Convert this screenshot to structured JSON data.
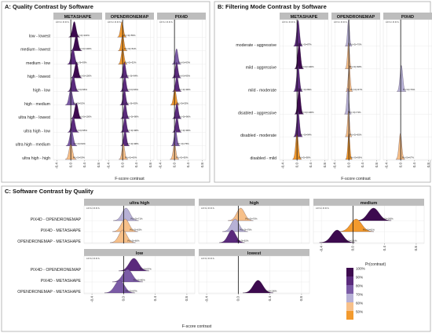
{
  "colors": {
    "p100": "#3d0a4f",
    "p90": "#5a2a7c",
    "p80": "#7b5ba6",
    "p70": "#b7b1d6",
    "p60": "#f7c089",
    "p50": "#f39a2d",
    "panel_bg": "#ffffff",
    "strip_bg": "#bdbdbd",
    "grid": "#e3e3e3"
  },
  "legend": {
    "title": "Pr(contrast)",
    "labels": [
      "100%",
      "90%",
      "80%",
      "70%",
      "60%",
      "50%"
    ]
  },
  "chart_data": [
    {
      "id": "A",
      "type": "ridgeline",
      "title": "A: Quality Contrast by Software",
      "facets": [
        "METASHAPE",
        "OPENDRONEMAP",
        "PIX4D"
      ],
      "rope_label": "LR.S.I.R.R.S.",
      "categories": [
        "low - lowest",
        "medium - lowest",
        "medium - low",
        "high - lowest",
        "high - low",
        "high - medium",
        "ultra high - lowest",
        "ultra high - low",
        "ultra high - medium",
        "ultra high - high"
      ],
      "xlabel": "F-score contrast",
      "xlim": [
        -0.5,
        0.9
      ],
      "xticks": [
        -0.4,
        0.0,
        0.4,
        0.8
      ],
      "xtick_labels": [
        "-0.4",
        "0.0",
        "0.4",
        "0.8"
      ],
      "series": [
        {
          "name": "METASHAPE",
          "rows": [
            {
              "category": "low - lowest",
              "mean": 0.1,
              "sd": 0.05,
              "prob": "Pr(>0)=100%",
              "level": 100
            },
            {
              "category": "medium - lowest",
              "mean": 0.16,
              "sd": 0.05,
              "prob": "Pr(>0)=100%",
              "level": 100
            },
            {
              "category": "medium - low",
              "mean": 0.06,
              "sd": 0.05,
              "prob": "Pr(>0)=93%",
              "level": 90
            },
            {
              "category": "high - lowest",
              "mean": 0.16,
              "sd": 0.05,
              "prob": "Pr(>0)=100%",
              "level": 100
            },
            {
              "category": "high - low",
              "mean": 0.07,
              "sd": 0.05,
              "prob": "Pr(>0)=96%",
              "level": 90
            },
            {
              "category": "high - medium",
              "mean": 0.0,
              "sd": 0.05,
              "prob": "Pr(>0)=52%",
              "level": 80
            },
            {
              "category": "ultra high - lowest",
              "mean": 0.16,
              "sd": 0.05,
              "prob": "Pr(>0)=100%",
              "level": 100
            },
            {
              "category": "ultra high - low",
              "mean": 0.07,
              "sd": 0.05,
              "prob": "Pr(>0)=95%",
              "level": 90
            },
            {
              "category": "ultra high - medium",
              "mean": 0.02,
              "sd": 0.05,
              "prob": "Pr(>0)=60%",
              "level": 80
            },
            {
              "category": "ultra high - high",
              "mean": 0.0,
              "sd": 0.05,
              "prob": "Pr(>0)=50%",
              "level": 60
            }
          ]
        },
        {
          "name": "OPENDRONEMAP",
          "rows": [
            {
              "category": "low - lowest",
              "mean": -0.02,
              "sd": 0.04,
              "prob": "Pr(<0)=55%",
              "level": 50
            },
            {
              "category": "medium - lowest",
              "mean": 0.0,
              "sd": 0.04,
              "prob": "Pr(<0)=54%",
              "level": 50
            },
            {
              "category": "medium - low",
              "mean": 0.0,
              "sd": 0.04,
              "prob": "Pr(<0)=52%",
              "level": 50
            },
            {
              "category": "high - lowest",
              "mean": 0.05,
              "sd": 0.04,
              "prob": "Pr(>0)=94%",
              "level": 90
            },
            {
              "category": "high - low",
              "mean": 0.06,
              "sd": 0.04,
              "prob": "Pr(>0)=96%",
              "level": 90
            },
            {
              "category": "high - medium",
              "mean": 0.05,
              "sd": 0.04,
              "prob": "Pr(>0)=92%",
              "level": 90
            },
            {
              "category": "ultra high - lowest",
              "mean": 0.07,
              "sd": 0.04,
              "prob": "Pr(>0)=98%",
              "level": 90
            },
            {
              "category": "ultra high - low",
              "mean": 0.07,
              "sd": 0.04,
              "prob": "Pr(>0)=98%",
              "level": 90
            },
            {
              "category": "ultra high - medium",
              "mean": 0.07,
              "sd": 0.04,
              "prob": "Pr(>0)=98%",
              "level": 90
            },
            {
              "category": "ultra high - high",
              "mean": 0.02,
              "sd": 0.04,
              "prob": "Pr(>0)=60%",
              "level": 60
            }
          ]
        },
        {
          "name": "PIX4D",
          "rows": [
            {
              "category": "low - lowest",
              "mean": null,
              "sd": null,
              "prob": "",
              "level": 0
            },
            {
              "category": "medium - lowest",
              "mean": null,
              "sd": null,
              "prob": "",
              "level": 0
            },
            {
              "category": "medium - low",
              "mean": 0.06,
              "sd": 0.04,
              "prob": "Pr(>0)=93%",
              "level": 80
            },
            {
              "category": "high - lowest",
              "mean": 0.06,
              "sd": 0.04,
              "prob": "Pr(>0)=95%",
              "level": 90
            },
            {
              "category": "high - low",
              "mean": 0.07,
              "sd": 0.04,
              "prob": "Pr(>0)=96%",
              "level": 90
            },
            {
              "category": "high - medium",
              "mean": 0.01,
              "sd": 0.04,
              "prob": "Pr(>0)=55%",
              "level": 50
            },
            {
              "category": "ultra high - lowest",
              "mean": 0.07,
              "sd": 0.04,
              "prob": "Pr(>0)=96%",
              "level": 90
            },
            {
              "category": "ultra high - low",
              "mean": 0.07,
              "sd": 0.04,
              "prob": "Pr(>0)=96%",
              "level": 90
            },
            {
              "category": "ultra high - medium",
              "mean": 0.03,
              "sd": 0.04,
              "prob": "Pr(>0)=75%",
              "level": 80
            },
            {
              "category": "ultra high - high",
              "mean": 0.0,
              "sd": 0.04,
              "prob": "Pr(>0)=50%",
              "level": 60
            }
          ]
        }
      ]
    },
    {
      "id": "B",
      "type": "ridgeline",
      "title": "B: Filtering Mode Contrast by Software",
      "facets": [
        "METASHAPE",
        "OPENDRONEMAP",
        "PIX4D"
      ],
      "rope_label": "LR.S.I.R.R.S.",
      "categories": [
        "moderate - aggressive",
        "mild - aggressive",
        "mild - moderate",
        "disabled - aggressive",
        "disabled - moderate",
        "disabled - mild"
      ],
      "xlabel": "F-score contrast",
      "xlim": [
        -0.5,
        0.9
      ],
      "xticks": [
        -0.4,
        0.0,
        0.4,
        0.8
      ],
      "xtick_labels": [
        "-0.4",
        "0.0",
        "0.4",
        "0.8"
      ],
      "series": [
        {
          "name": "METASHAPE",
          "rows": [
            {
              "category": "moderate - aggressive",
              "mean": 0.03,
              "sd": 0.04,
              "prob": "Pr(>0)=87%",
              "level": 90
            },
            {
              "category": "mild - aggressive",
              "mean": 0.06,
              "sd": 0.04,
              "prob": "Pr(>0)=100%",
              "level": 100
            },
            {
              "category": "mild - moderate",
              "mean": 0.03,
              "sd": 0.04,
              "prob": "Pr(>0)=89%",
              "level": 90
            },
            {
              "category": "disabled - aggressive",
              "mean": 0.06,
              "sd": 0.04,
              "prob": "Pr(>0)=100%",
              "level": 100
            },
            {
              "category": "disabled - moderate",
              "mean": 0.03,
              "sd": 0.04,
              "prob": "Pr(>0)=94%",
              "level": 90
            },
            {
              "category": "disabled - mild",
              "mean": 0.0,
              "sd": 0.04,
              "prob": "Pr(<0)=58%",
              "level": 50
            }
          ]
        },
        {
          "name": "OPENDRONEMAP",
          "rows": [
            {
              "category": "moderate - aggressive",
              "mean": -0.01,
              "sd": 0.03,
              "prob": "Pr(<0)=70%",
              "level": 70
            },
            {
              "category": "mild - aggressive",
              "mean": -0.01,
              "sd": 0.03,
              "prob": "Pr(<0)=68%",
              "level": 60
            },
            {
              "category": "mild - moderate",
              "mean": 0.01,
              "sd": 0.03,
              "prob": "Pr(>0)=67%",
              "level": 60
            },
            {
              "category": "disabled - aggressive",
              "mean": -0.03,
              "sd": 0.03,
              "prob": "Pr(<0)=73%",
              "level": 70
            },
            {
              "category": "disabled - moderate",
              "mean": -0.01,
              "sd": 0.03,
              "prob": "Pr(<0)=65%",
              "level": 60
            },
            {
              "category": "disabled - mild",
              "mean": 0.0,
              "sd": 0.03,
              "prob": "Pr(<0)=56%",
              "level": 50
            }
          ]
        },
        {
          "name": "PIX4D",
          "rows": [
            {
              "category": "moderate - aggressive",
              "mean": null,
              "sd": null,
              "prob": "",
              "level": 0
            },
            {
              "category": "mild - aggressive",
              "mean": null,
              "sd": null,
              "prob": "",
              "level": 0
            },
            {
              "category": "mild - moderate",
              "mean": 0.02,
              "sd": 0.04,
              "prob": "Pr(>0)=79%",
              "level": 70
            },
            {
              "category": "disabled - aggressive",
              "mean": null,
              "sd": null,
              "prob": "",
              "level": 0
            },
            {
              "category": "disabled - moderate",
              "mean": null,
              "sd": null,
              "prob": "",
              "level": 0
            },
            {
              "category": "disabled - mild",
              "mean": -0.01,
              "sd": 0.04,
              "prob": "Pr(<0)=67%",
              "level": 60
            }
          ]
        }
      ]
    },
    {
      "id": "C",
      "type": "ridgeline",
      "title": "C: Software Contrast by Quality",
      "facets": [
        "ultra high",
        "high",
        "medium",
        "low",
        "lowest"
      ],
      "rope_label": "LR.S.I.R.R.S.",
      "categories": [
        "PIX4D - OPENDRONEMAP",
        "PIX4D - METASHAPE",
        "OPENDRONEMAP - METASHAPE"
      ],
      "xlabel": "F-score contrast",
      "xlim": [
        -0.5,
        0.9
      ],
      "xticks": [
        -0.4,
        0.0,
        0.4,
        0.8
      ],
      "xtick_labels": [
        "-0.4",
        "0.0",
        "0.4",
        "0.8"
      ],
      "series": [
        {
          "name": "ultra high",
          "rows": [
            {
              "category": "PIX4D - OPENDRONEMAP",
              "mean": 0.03,
              "sd": 0.05,
              "prob": "Pr(>0)=71%",
              "level": 70
            },
            {
              "category": "PIX4D - METASHAPE",
              "mean": 0.02,
              "sd": 0.05,
              "prob": "Pr(>0)=63%",
              "level": 60
            },
            {
              "category": "OPENDRONEMAP - METASHAPE",
              "mean": -0.01,
              "sd": 0.05,
              "prob": "Pr(<0)=60%",
              "level": 60
            }
          ]
        },
        {
          "name": "high",
          "rows": [
            {
              "category": "PIX4D - OPENDRONEMAP",
              "mean": 0.03,
              "sd": 0.05,
              "prob": "Pr(>0)=70%",
              "level": 60
            },
            {
              "category": "PIX4D - METASHAPE",
              "mean": -0.04,
              "sd": 0.05,
              "prob": "Pr(<0)=79%",
              "level": 70
            },
            {
              "category": "OPENDRONEMAP - METASHAPE",
              "mean": -0.08,
              "sd": 0.05,
              "prob": "Pr(<0)=92%",
              "level": 90
            }
          ]
        },
        {
          "name": "medium",
          "rows": [
            {
              "category": "PIX4D - OPENDRONEMAP",
              "mean": 0.26,
              "sd": 0.07,
              "prob": "Pr(>0)=100%",
              "level": 100
            },
            {
              "category": "PIX4D - METASHAPE",
              "mean": 0.04,
              "sd": 0.07,
              "prob": "Pr(>0)=61%",
              "level": 50
            },
            {
              "category": "OPENDRONEMAP - METASHAPE",
              "mean": -0.2,
              "sd": 0.07,
              "prob": "Pr(<0)=100%",
              "level": 100
            }
          ]
        },
        {
          "name": "low",
          "rows": [
            {
              "category": "PIX4D - OPENDRONEMAP",
              "mean": 0.13,
              "sd": 0.06,
              "prob": "Pr(>0)=97%",
              "level": 90
            },
            {
              "category": "PIX4D - METASHAPE",
              "mean": 0.05,
              "sd": 0.06,
              "prob": "Pr(>0)=80%",
              "level": 80
            },
            {
              "category": "OPENDRONEMAP - METASHAPE",
              "mean": -0.05,
              "sd": 0.06,
              "prob": "Pr(<0)=87%",
              "level": 80
            }
          ]
        },
        {
          "name": "lowest",
          "rows": [
            {
              "category": "PIX4D - OPENDRONEMAP",
              "mean": null,
              "sd": null,
              "prob": "",
              "level": 0
            },
            {
              "category": "PIX4D - METASHAPE",
              "mean": null,
              "sd": null,
              "prob": "",
              "level": 0
            },
            {
              "category": "OPENDRONEMAP - METASHAPE",
              "mean": 0.25,
              "sd": 0.06,
              "prob": "Pr(>0)=100%",
              "level": 100
            }
          ]
        }
      ]
    }
  ]
}
